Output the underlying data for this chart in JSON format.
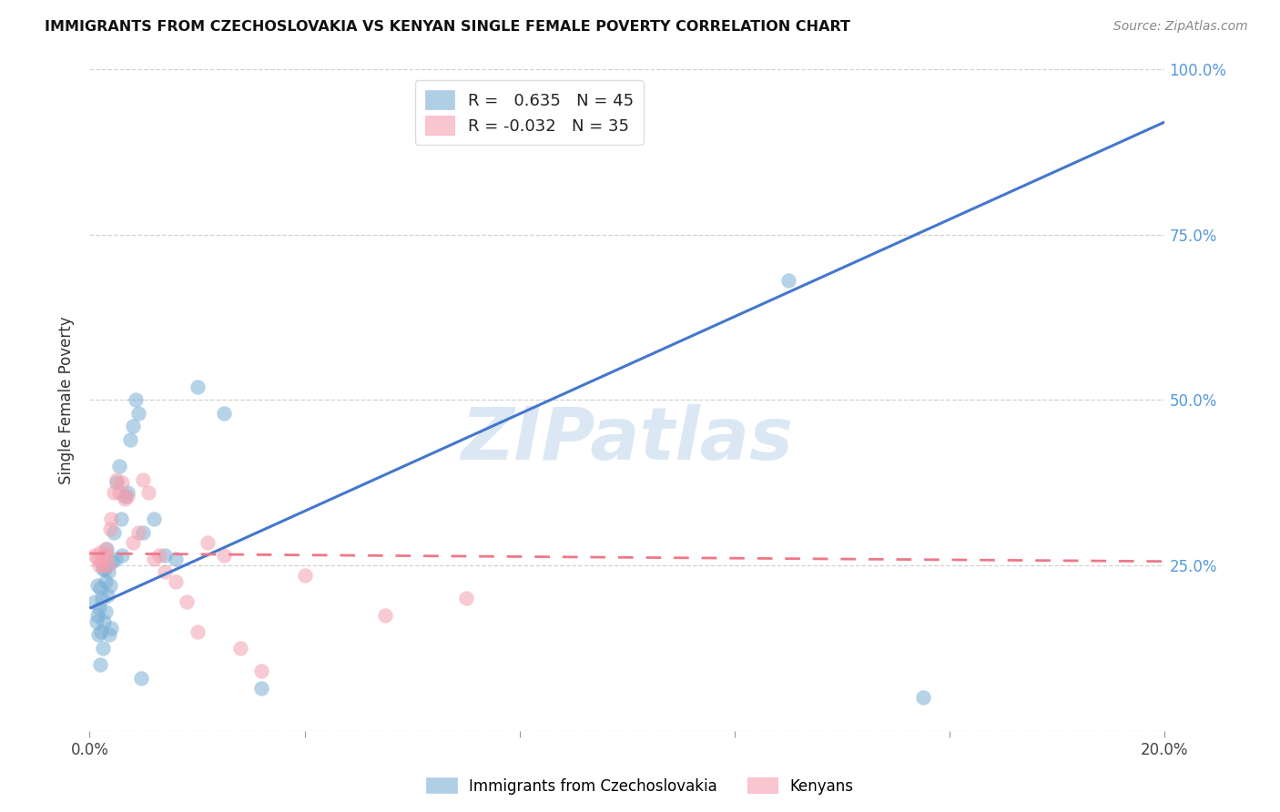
{
  "title": "IMMIGRANTS FROM CZECHOSLOVAKIA VS KENYAN SINGLE FEMALE POVERTY CORRELATION CHART",
  "source": "Source: ZipAtlas.com",
  "xlabel": "",
  "ylabel": "Single Female Poverty",
  "xlim": [
    0.0,
    0.2
  ],
  "ylim": [
    0.0,
    1.0
  ],
  "blue_r": 0.635,
  "blue_n": 45,
  "pink_r": -0.032,
  "pink_n": 35,
  "blue_color": "#7BAFD4",
  "pink_color": "#F4A0B0",
  "blue_line_color": "#4477CC",
  "pink_line_color": "#EE7788",
  "watermark": "ZIPatlas",
  "blue_line_x0": 0.0,
  "blue_line_y0": 0.185,
  "blue_line_x1": 0.2,
  "blue_line_y1": 0.92,
  "pink_line_x0": 0.0,
  "pink_line_y0": 0.268,
  "pink_line_x1": 0.2,
  "pink_line_y1": 0.256,
  "blue_points_x": [
    0.001,
    0.0012,
    0.0014,
    0.0015,
    0.0016,
    0.0018,
    0.002,
    0.002,
    0.0022,
    0.0023,
    0.0024,
    0.0025,
    0.0026,
    0.0028,
    0.003,
    0.003,
    0.0032,
    0.0033,
    0.0035,
    0.0036,
    0.0038,
    0.004,
    0.0042,
    0.0045,
    0.0048,
    0.005,
    0.0055,
    0.0058,
    0.006,
    0.0065,
    0.007,
    0.0075,
    0.008,
    0.0085,
    0.009,
    0.0095,
    0.01,
    0.012,
    0.014,
    0.016,
    0.02,
    0.025,
    0.032,
    0.13,
    0.155
  ],
  "blue_points_y": [
    0.195,
    0.165,
    0.175,
    0.22,
    0.145,
    0.185,
    0.215,
    0.1,
    0.15,
    0.2,
    0.245,
    0.125,
    0.165,
    0.245,
    0.18,
    0.225,
    0.275,
    0.205,
    0.24,
    0.145,
    0.22,
    0.155,
    0.255,
    0.3,
    0.26,
    0.375,
    0.4,
    0.32,
    0.265,
    0.355,
    0.36,
    0.44,
    0.46,
    0.5,
    0.48,
    0.08,
    0.3,
    0.32,
    0.265,
    0.26,
    0.52,
    0.48,
    0.065,
    0.68,
    0.05
  ],
  "pink_points_x": [
    0.001,
    0.0015,
    0.0018,
    0.002,
    0.0022,
    0.0025,
    0.0028,
    0.003,
    0.0032,
    0.0035,
    0.0038,
    0.004,
    0.0045,
    0.005,
    0.0055,
    0.006,
    0.0065,
    0.007,
    0.008,
    0.009,
    0.01,
    0.011,
    0.012,
    0.013,
    0.014,
    0.016,
    0.018,
    0.02,
    0.022,
    0.025,
    0.028,
    0.032,
    0.04,
    0.055,
    0.07
  ],
  "pink_points_y": [
    0.265,
    0.26,
    0.25,
    0.27,
    0.255,
    0.25,
    0.265,
    0.275,
    0.265,
    0.25,
    0.305,
    0.32,
    0.36,
    0.38,
    0.36,
    0.375,
    0.35,
    0.355,
    0.285,
    0.3,
    0.38,
    0.36,
    0.26,
    0.265,
    0.24,
    0.225,
    0.195,
    0.15,
    0.285,
    0.265,
    0.125,
    0.09,
    0.235,
    0.175,
    0.2
  ]
}
